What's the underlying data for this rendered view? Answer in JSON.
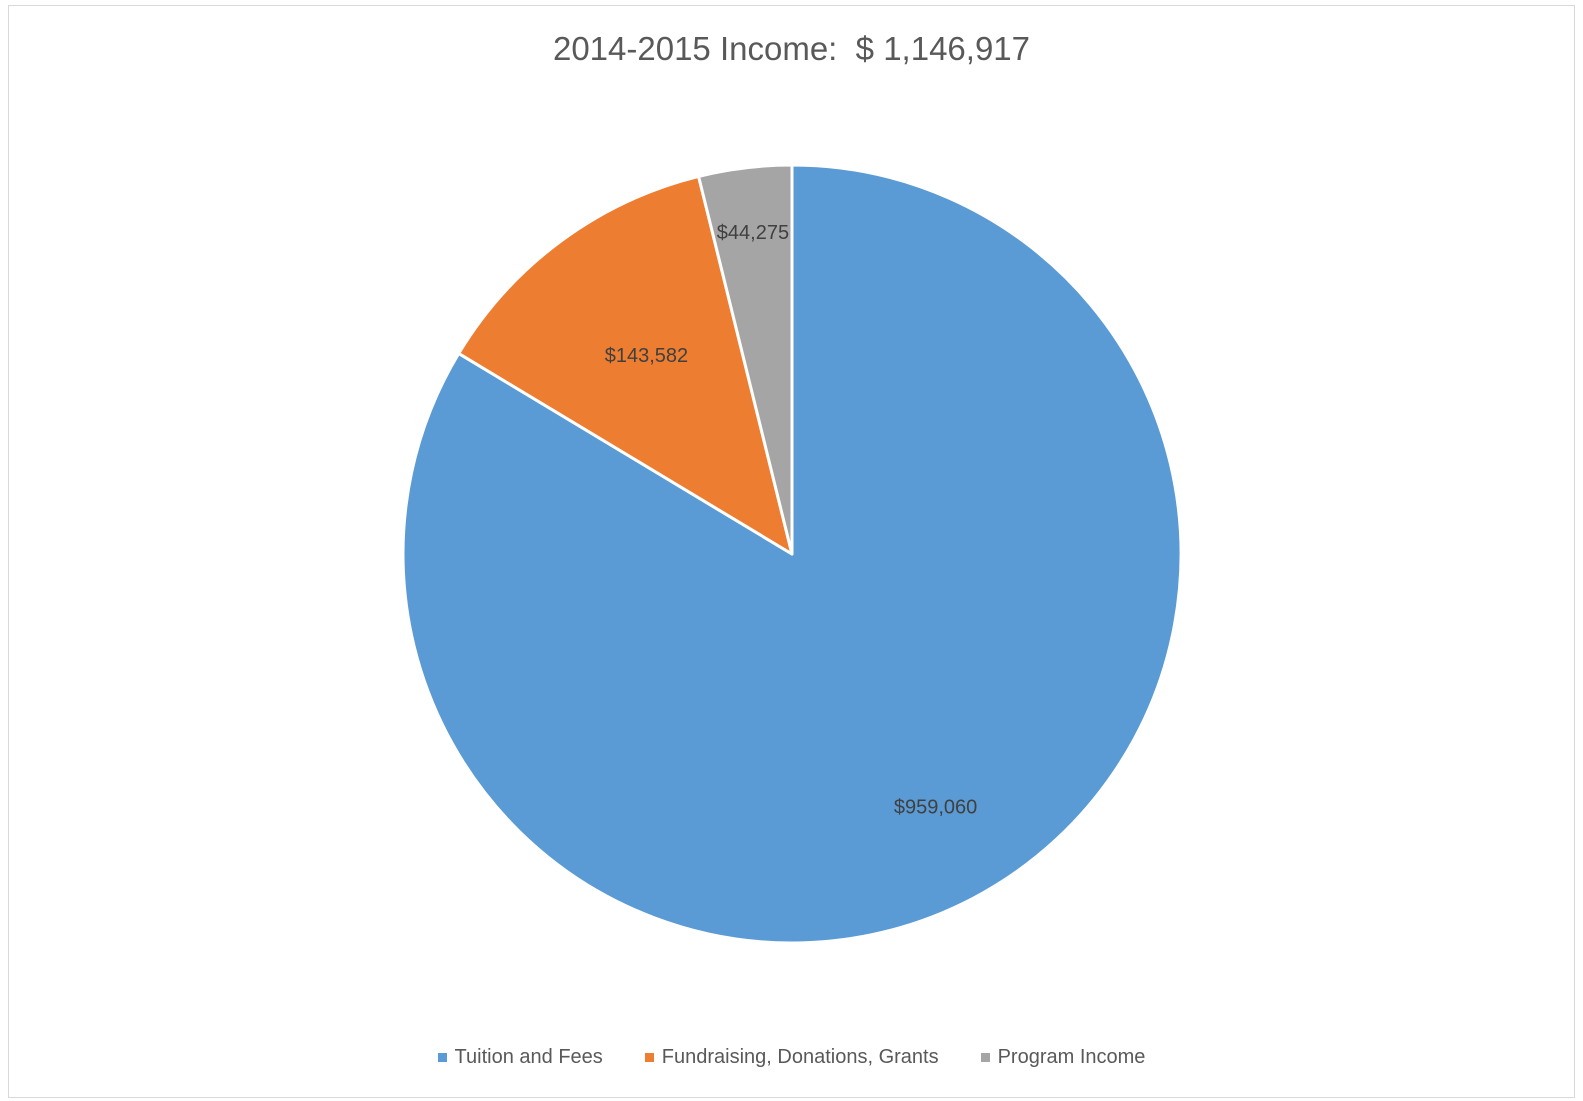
{
  "chart_data": {
    "type": "pie",
    "title": "2014-2015 Income:  $ 1,146,917",
    "categories": [
      "Tuition and Fees",
      "Fundraising, Donations, Grants",
      "Program Income"
    ],
    "values": [
      959060,
      143582,
      44275
    ],
    "data_labels": [
      "$959,060",
      "$143,582",
      "$44,275"
    ],
    "colors": [
      "#5b9bd5",
      "#ed7d31",
      "#a5a5a5"
    ],
    "start_angle_deg": 0,
    "direction": "clockwise",
    "legend_position": "bottom"
  }
}
